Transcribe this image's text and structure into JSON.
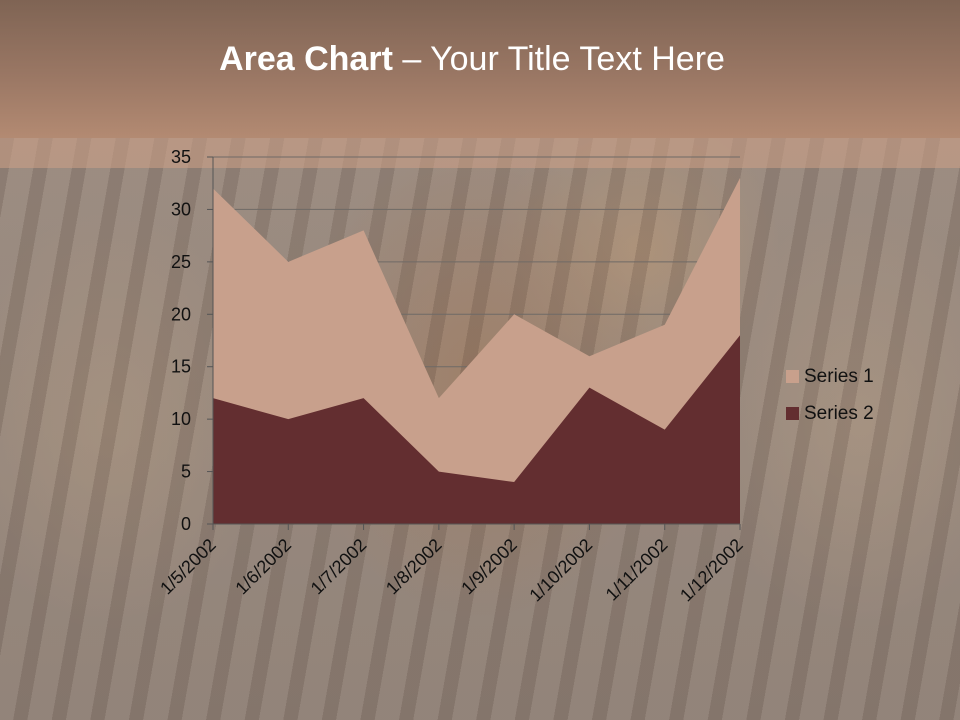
{
  "slide": {
    "title_bold": "Area Chart",
    "title_rest": " – Your Title Text Here"
  },
  "chart_data": {
    "type": "area",
    "stacked": false,
    "title": "",
    "xlabel": "",
    "ylabel": "",
    "x": [
      "1/5/2002",
      "1/6/2002",
      "1/7/2002",
      "1/8/2002",
      "1/9/2002",
      "1/10/2002",
      "1/11/2002",
      "1/12/2002"
    ],
    "ylim": [
      0,
      35
    ],
    "yticks": [
      0,
      5,
      10,
      15,
      20,
      25,
      30,
      35
    ],
    "grid": true,
    "legend_position": "right",
    "series": [
      {
        "name": "Series 1",
        "values": [
          32,
          25,
          28,
          12,
          20,
          16,
          19,
          33
        ],
        "color": "#c8a08c"
      },
      {
        "name": "Series 2",
        "values": [
          12,
          10,
          12,
          5,
          4,
          13,
          9,
          18
        ],
        "color": "#632e30"
      }
    ]
  }
}
